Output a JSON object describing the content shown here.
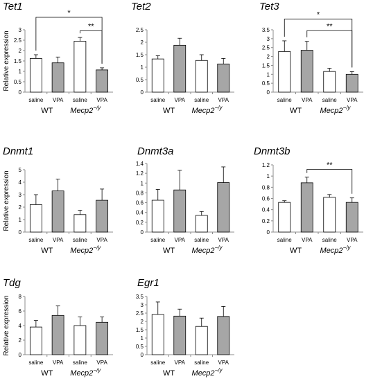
{
  "ylabel": "Relative expression",
  "group_labels": [
    "WT",
    "Mecp2"
  ],
  "group_superscript": "−/y",
  "categories": [
    "saline",
    "VPA",
    "saline",
    "VPA"
  ],
  "colors": {
    "saline": "#ffffff",
    "VPA": "#a6a6a6",
    "axis": "#8c8c8c",
    "bar_edge": "#000000"
  },
  "chart_data": [
    {
      "type": "bar",
      "title": "Tet1",
      "ylim": [
        0,
        3
      ],
      "yticks": [
        "0",
        "0.5",
        "1",
        "1.5",
        "2",
        "2.5",
        "3"
      ],
      "ytick_values": [
        0,
        0.5,
        1,
        1.5,
        2,
        2.5,
        3
      ],
      "categories": [
        "saline",
        "VPA",
        "saline",
        "VPA"
      ],
      "values": [
        1.62,
        1.41,
        2.45,
        1.07
      ],
      "errors": [
        0.18,
        0.28,
        0.18,
        0.1
      ],
      "significance": [
        {
          "from": 0,
          "to": 3,
          "label": "*",
          "level": 3.6
        },
        {
          "from": 2,
          "to": 3,
          "label": "**",
          "level": 2.95
        }
      ]
    },
    {
      "type": "bar",
      "title": "Tet2",
      "ylim": [
        0,
        2.5
      ],
      "yticks": [
        "0",
        "0.5",
        "1",
        "1.5",
        "2",
        "2.5"
      ],
      "ytick_values": [
        0,
        0.5,
        1,
        1.5,
        2,
        2.5
      ],
      "categories": [
        "saline",
        "VPA",
        "saline",
        "VPA"
      ],
      "values": [
        1.33,
        1.88,
        1.27,
        1.13
      ],
      "errors": [
        0.13,
        0.28,
        0.23,
        0.22
      ],
      "significance": []
    },
    {
      "type": "bar",
      "title": "Tet3",
      "ylim": [
        0,
        3.5
      ],
      "yticks": [
        "0",
        "0.5",
        "1",
        "1.5",
        "2",
        "2.5",
        "3",
        "3.5"
      ],
      "ytick_values": [
        0,
        0.5,
        1,
        1.5,
        2,
        2.5,
        3,
        3.5
      ],
      "categories": [
        "saline",
        "VPA",
        "saline",
        "VPA"
      ],
      "values": [
        2.28,
        2.35,
        1.16,
        1.0
      ],
      "errors": [
        0.6,
        0.5,
        0.18,
        0.15
      ],
      "significance": [
        {
          "from": 0,
          "to": 3,
          "label": "*",
          "level": 4.1
        },
        {
          "from": 1,
          "to": 3,
          "label": "**",
          "level": 3.45
        }
      ]
    },
    {
      "type": "bar",
      "title": "Dnmt1",
      "ylim": [
        0,
        5
      ],
      "yticks": [
        "0",
        "1",
        "2",
        "3",
        "4",
        "5"
      ],
      "ytick_values": [
        0,
        1,
        2,
        3,
        4,
        5
      ],
      "categories": [
        "saline",
        "VPA",
        "saline",
        "VPA"
      ],
      "values": [
        2.2,
        3.3,
        1.4,
        2.55
      ],
      "errors": [
        0.8,
        0.95,
        0.35,
        0.9
      ],
      "significance": []
    },
    {
      "type": "bar",
      "title": "Dnmt3a",
      "ylim": [
        0,
        1.4
      ],
      "yticks": [
        "0",
        "0.2",
        "0.4",
        "0.6",
        "0.8",
        "1",
        "1.2",
        "1.4"
      ],
      "ytick_values": [
        0,
        0.2,
        0.4,
        0.6,
        0.8,
        1,
        1.2,
        1.4
      ],
      "categories": [
        "saline",
        "VPA",
        "saline",
        "VPA"
      ],
      "values": [
        0.65,
        0.86,
        0.34,
        1.01
      ],
      "errors": [
        0.22,
        0.4,
        0.08,
        0.32
      ],
      "significance": []
    },
    {
      "type": "bar",
      "title": "Dnmt3b",
      "ylim": [
        0,
        1.2
      ],
      "yticks": [
        "0",
        "0.2",
        "0.4",
        "0.6",
        "0.8",
        "1",
        "1.2"
      ],
      "ytick_values": [
        0,
        0.2,
        0.4,
        0.6,
        0.8,
        1,
        1.2
      ],
      "categories": [
        "saline",
        "VPA",
        "saline",
        "VPA"
      ],
      "values": [
        0.53,
        0.88,
        0.62,
        0.53
      ],
      "errors": [
        0.03,
        0.1,
        0.05,
        0.08
      ],
      "significance": [
        {
          "from": 1,
          "to": 3,
          "label": "**",
          "level": 1.12
        }
      ]
    },
    {
      "type": "bar",
      "title": "Tdg",
      "ylim": [
        0,
        8
      ],
      "yticks": [
        "0",
        "2",
        "4",
        "6",
        "8"
      ],
      "ytick_values": [
        0,
        2,
        4,
        6,
        8
      ],
      "categories": [
        "saline",
        "VPA",
        "saline",
        "VPA"
      ],
      "values": [
        3.8,
        5.4,
        4.0,
        4.45
      ],
      "errors": [
        0.9,
        1.3,
        1.2,
        0.75
      ],
      "significance": []
    },
    {
      "type": "bar",
      "title": "Egr1",
      "ylim": [
        0,
        3.5
      ],
      "yticks": [
        "0",
        "0.5",
        "1",
        "1.5",
        "2",
        "2.5",
        "3",
        "3.5"
      ],
      "ytick_values": [
        0,
        0.5,
        1,
        1.5,
        2,
        2.5,
        3,
        3.5
      ],
      "categories": [
        "saline",
        "VPA",
        "saline",
        "VPA"
      ],
      "values": [
        2.42,
        2.32,
        1.7,
        2.3
      ],
      "errors": [
        0.75,
        0.42,
        0.5,
        0.6
      ],
      "significance": []
    }
  ]
}
